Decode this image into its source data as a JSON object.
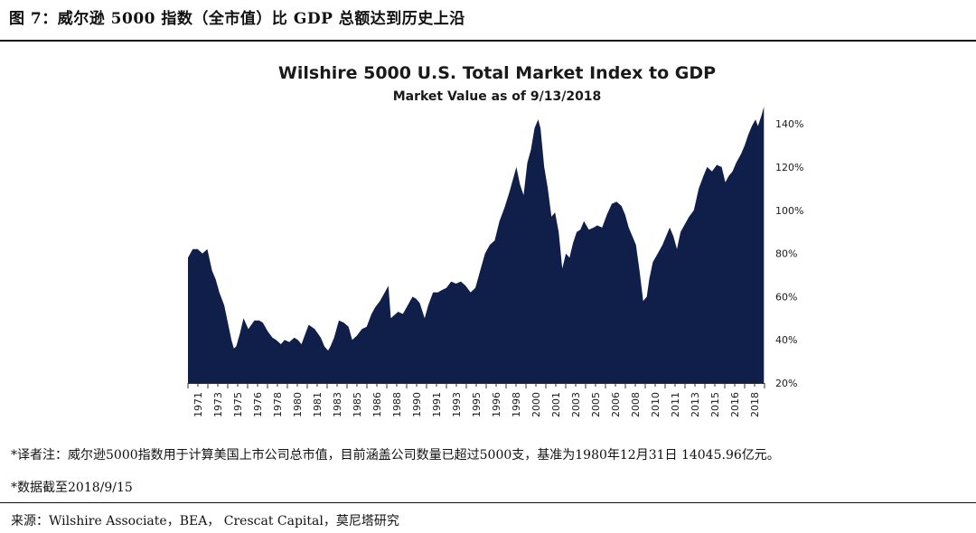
{
  "figure_title": "图 7：威尔逊 5000 指数（全市值）比 GDP 总额达到历史上沿",
  "notes": {
    "note1": "*译者注：威尔逊5000指数用于计算美国上市公司总市值，目前涵盖公司数量已超过5000支，基准为1980年12月31日  14045.96亿元。",
    "note2": "*数据截至2018/9/15"
  },
  "source": "来源：Wilshire Associate，BEA，  Crescat Capital，莫尼塔研究",
  "colors": {
    "fill": "#0f1f4a",
    "text": "#1a1a1a"
  },
  "chart_data": {
    "type": "area",
    "title": "Wilshire 5000 U.S. Total Market Index to GDP",
    "subtitle": "Market Value as of 9/13/2018",
    "xlabel": "",
    "ylabel": "",
    "ylim": [
      20,
      148
    ],
    "y_ticks": [
      "20%",
      "40%",
      "60%",
      "80%",
      "100%",
      "120%",
      "140%"
    ],
    "x_ticks": [
      "1971",
      "1973",
      "1975",
      "1976",
      "1978",
      "1980",
      "1981",
      "1983",
      "1985",
      "1986",
      "1988",
      "1990",
      "1991",
      "1993",
      "1995",
      "1996",
      "1998",
      "2000",
      "2001",
      "2003",
      "2005",
      "2006",
      "2008",
      "2010",
      "2011",
      "2013",
      "2015",
      "2016",
      "2018"
    ],
    "grid": false,
    "legend": "none",
    "series": [
      {
        "x": [
          1971.0,
          1971.4,
          1971.8,
          1972.2,
          1972.6,
          1973.0,
          1973.3,
          1973.6,
          1974.0,
          1974.3,
          1974.6,
          1974.8,
          1975.0,
          1975.3,
          1975.6,
          1976.0,
          1976.5,
          1976.9,
          1977.2,
          1977.6,
          1978.0,
          1978.3,
          1978.7,
          1979.0,
          1979.4,
          1979.8,
          1980.1,
          1980.4,
          1980.8,
          1981.0,
          1981.5,
          1982.0,
          1982.3,
          1982.6,
          1982.8,
          1983.1,
          1983.5,
          1983.9,
          1984.3,
          1984.6,
          1985.0,
          1985.4,
          1985.8,
          1986.2,
          1986.5,
          1986.9,
          1987.3,
          1987.6,
          1987.8,
          1988.0,
          1988.4,
          1988.8,
          1989.2,
          1989.6,
          1989.9,
          1990.2,
          1990.6,
          1990.9,
          1991.3,
          1991.7,
          1992.0,
          1992.4,
          1992.8,
          1993.2,
          1993.6,
          1994.0,
          1994.4,
          1994.8,
          1995.2,
          1995.6,
          1996.0,
          1996.4,
          1996.8,
          1997.2,
          1997.6,
          1997.9,
          1998.2,
          1998.5,
          1998.8,
          1999.1,
          1999.4,
          1999.7,
          2000.0,
          2000.2,
          2000.5,
          2000.8,
          2001.1,
          2001.4,
          2001.7,
          2002.0,
          2002.3,
          2002.6,
          2002.9,
          2003.2,
          2003.5,
          2003.8,
          2004.2,
          2004.6,
          2004.9,
          2005.3,
          2005.7,
          2006.1,
          2006.5,
          2006.9,
          2007.2,
          2007.5,
          2007.8,
          2008.1,
          2008.4,
          2008.7,
          2009.0,
          2009.2,
          2009.5,
          2009.9,
          2010.3,
          2010.6,
          2010.9,
          2011.2,
          2011.5,
          2011.8,
          2012.1,
          2012.5,
          2012.9,
          2013.3,
          2013.7,
          2014.0,
          2014.4,
          2014.8,
          2015.2,
          2015.5,
          2015.8,
          2016.1,
          2016.4,
          2016.8,
          2017.1,
          2017.4,
          2017.7,
          2018.0,
          2018.2,
          2018.5,
          2018.7
        ],
        "values": [
          78,
          82,
          82,
          80,
          82,
          72,
          68,
          62,
          56,
          48,
          40,
          36,
          37,
          43,
          50,
          45,
          49,
          49,
          48,
          44,
          41,
          40,
          38,
          40,
          39,
          41,
          40,
          38,
          44,
          47,
          45,
          41,
          37,
          35,
          37,
          41,
          49,
          48,
          46,
          40,
          42,
          45,
          46,
          52,
          55,
          58,
          62,
          65,
          50,
          51,
          53,
          52,
          56,
          60,
          59,
          57,
          50,
          56,
          62,
          62,
          63,
          64,
          67,
          66,
          67,
          65,
          62,
          64,
          72,
          80,
          84,
          86,
          95,
          101,
          108,
          114,
          120,
          112,
          107,
          122,
          128,
          138,
          142,
          138,
          120,
          110,
          97,
          99,
          90,
          73,
          80,
          78,
          85,
          90,
          91,
          95,
          91,
          92,
          93,
          92,
          98,
          103,
          104,
          102,
          98,
          92,
          88,
          84,
          72,
          58,
          60,
          68,
          76,
          80,
          84,
          88,
          92,
          88,
          82,
          90,
          93,
          97,
          100,
          110,
          116,
          120,
          118,
          121,
          120,
          113,
          116,
          118,
          122,
          126,
          130,
          135,
          139,
          142,
          139,
          144,
          148
        ]
      }
    ]
  }
}
